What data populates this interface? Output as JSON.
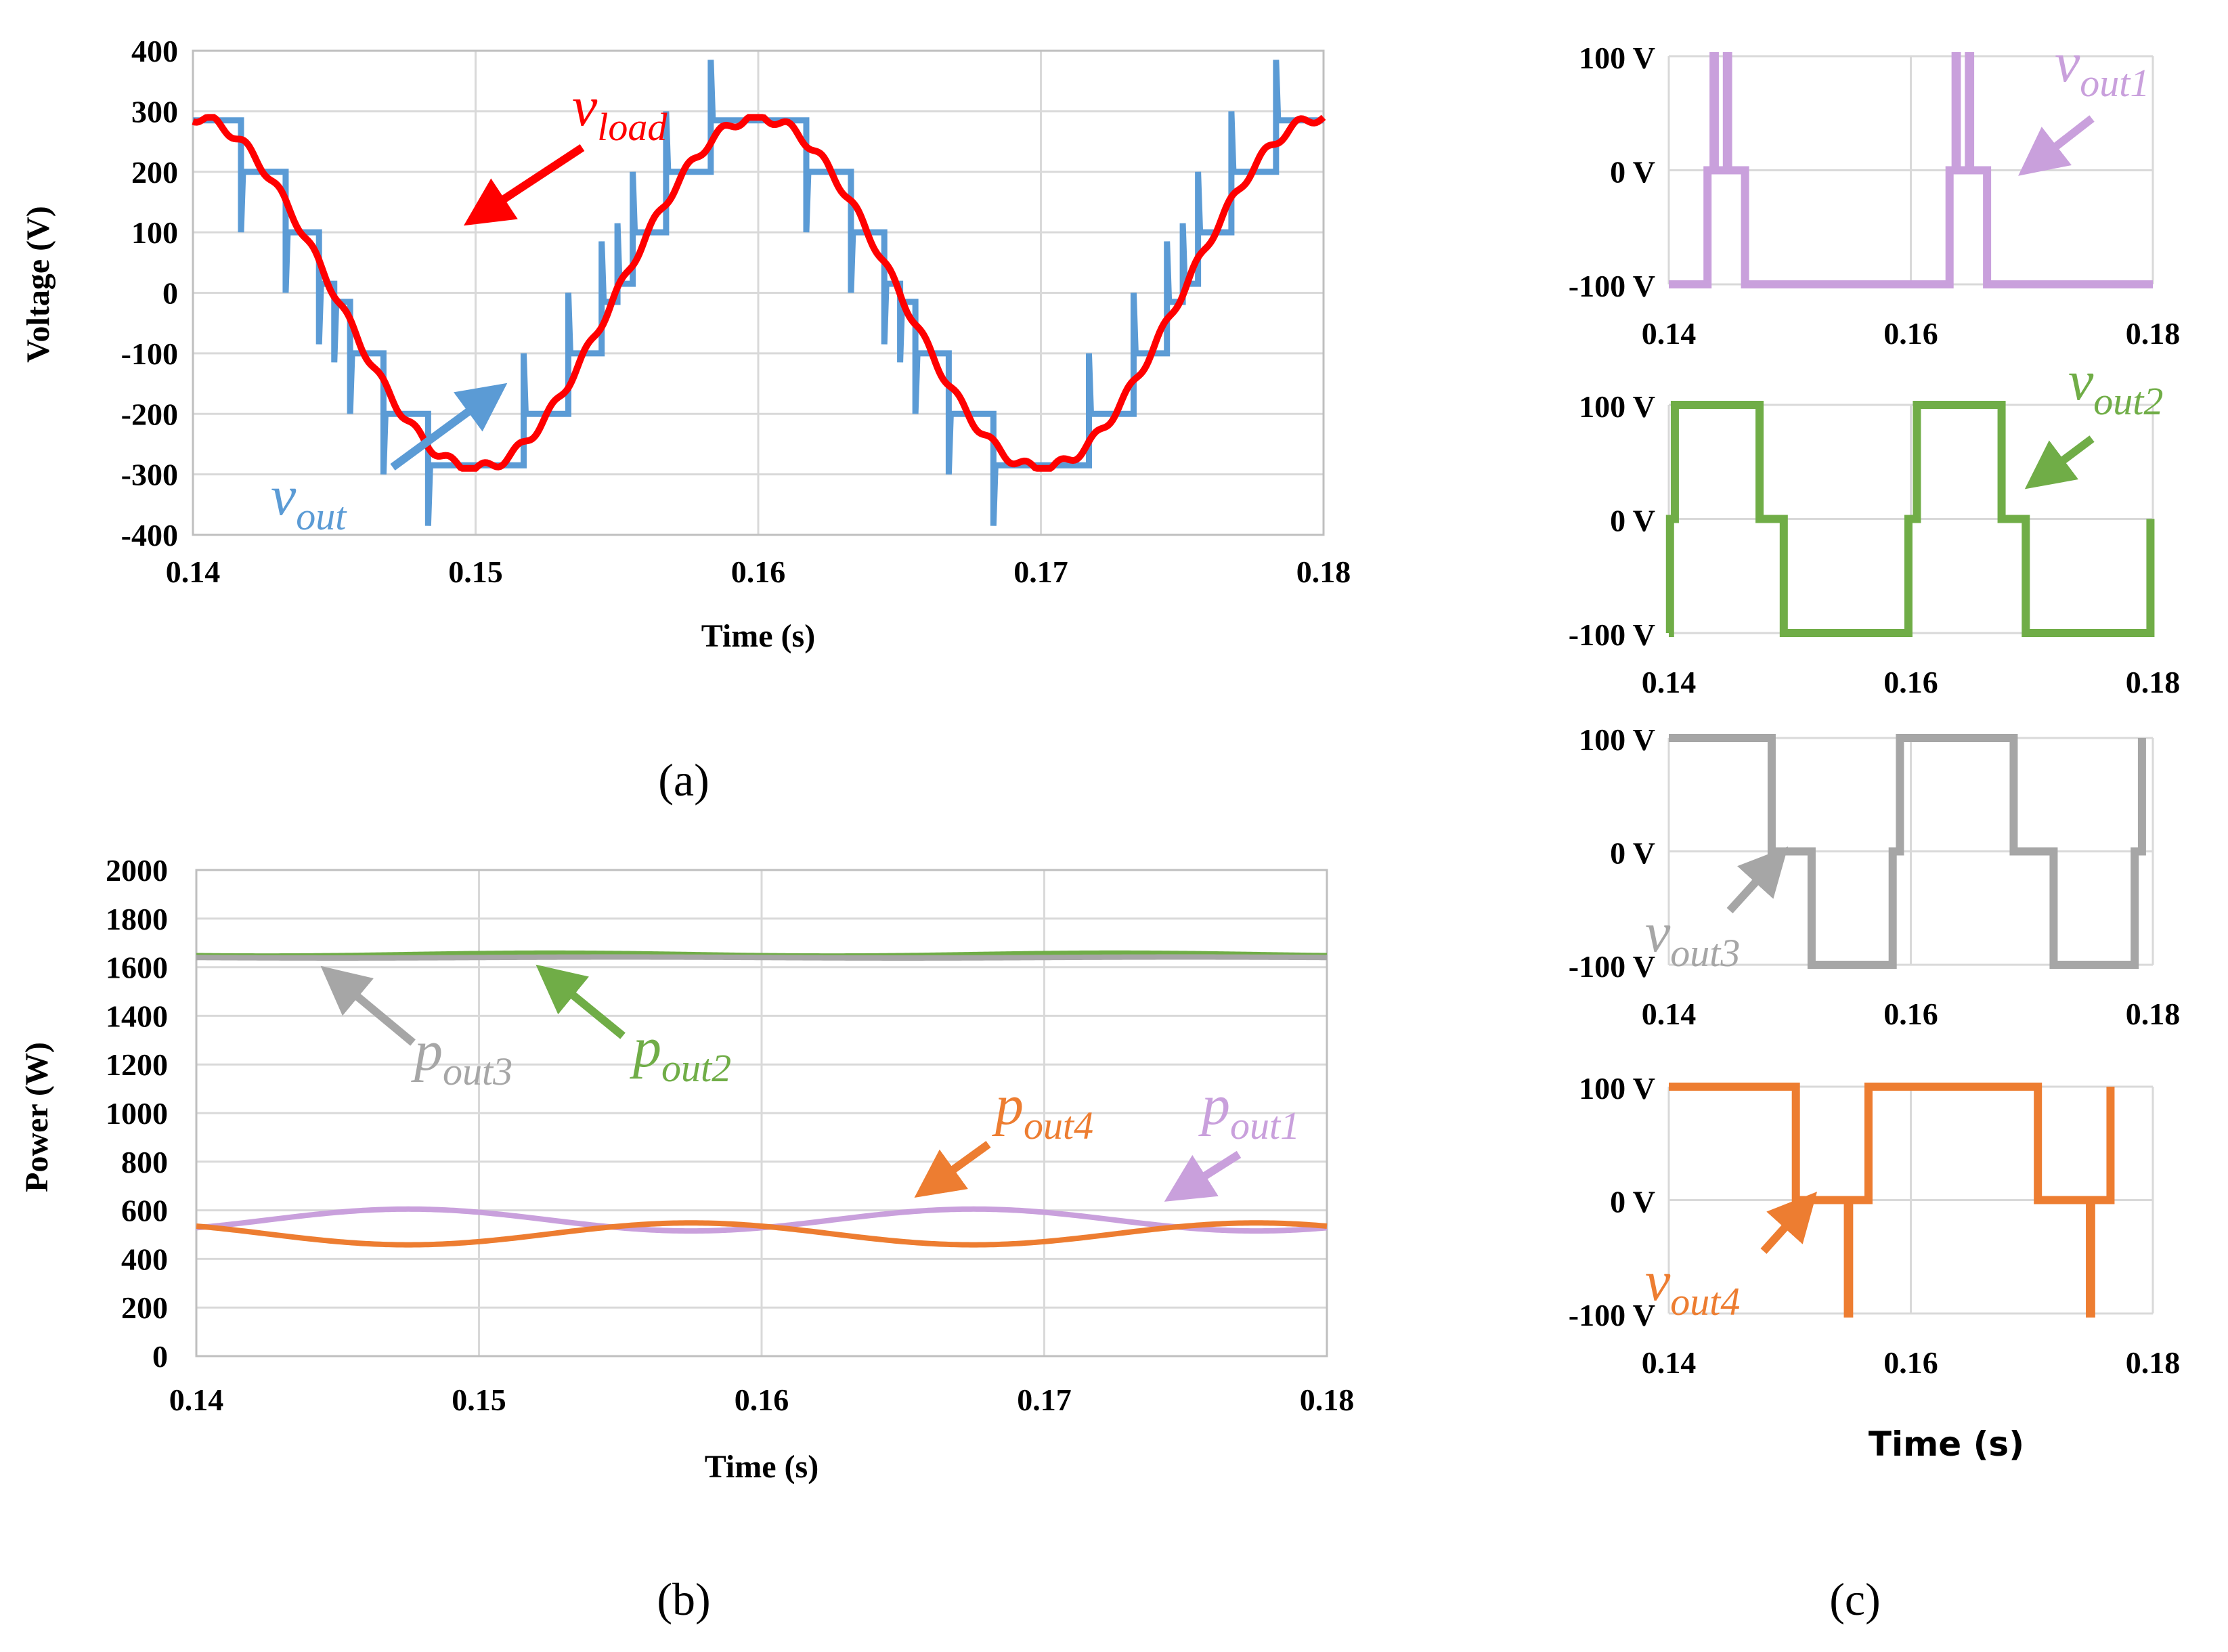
{
  "colors": {
    "vout": "#5b9bd5",
    "vload": "#ff0000",
    "pout1": "#c9a0dc",
    "pout2": "#70ad47",
    "pout3": "#a6a6a6",
    "pout4": "#ed7d31"
  },
  "captions": {
    "a": "(a)",
    "b": "(b)",
    "c": "(c)"
  },
  "chart_data": [
    {
      "id": "a",
      "type": "line",
      "title": "",
      "xlabel": "Time (s)",
      "ylabel": "Voltage (V)",
      "xlim": [
        0.14,
        0.18
      ],
      "ylim": [
        -400,
        400
      ],
      "x_ticks": [
        "0.14",
        "0.15",
        "0.16",
        "0.17",
        "0.18"
      ],
      "y_ticks": [
        "400",
        "300",
        "200",
        "100",
        "0",
        "-100",
        "-200",
        "-300",
        "-400"
      ],
      "annotations": [
        {
          "main": "v",
          "sub": "load",
          "color": "#ff0000"
        },
        {
          "main": "v",
          "sub": "out",
          "color": "#5b9bd5"
        }
      ],
      "series": [
        {
          "name": "vout",
          "description": "stepped multilevel waveform, 20 ms period, levels 0 to ±300 V with spikes to ±390 V",
          "color": "#5b9bd5"
        },
        {
          "name": "vload",
          "description": "filtered sinusoid, amplitude ~290 V, 20 ms period",
          "color": "#ff0000"
        }
      ]
    },
    {
      "id": "b",
      "type": "line",
      "title": "",
      "xlabel": "Time (s)",
      "ylabel": "Power (W)",
      "xlim": [
        0.14,
        0.18
      ],
      "ylim": [
        0,
        2000
      ],
      "x_ticks": [
        "0.14",
        "0.15",
        "0.16",
        "0.17",
        "0.18"
      ],
      "y_ticks": [
        "2000",
        "1800",
        "1600",
        "1400",
        "1200",
        "1000",
        "800",
        "600",
        "400",
        "200",
        "0"
      ],
      "annotations": [
        {
          "main": "p",
          "sub": "out3",
          "color": "#a6a6a6"
        },
        {
          "main": "p",
          "sub": "out2",
          "color": "#70ad47"
        },
        {
          "main": "p",
          "sub": "out4",
          "color": "#ed7d31"
        },
        {
          "main": "p",
          "sub": "out1",
          "color": "#c9a0dc"
        }
      ],
      "series": [
        {
          "name": "pout1",
          "mean": 560,
          "amplitude": 45,
          "period": 0.02,
          "color": "#c9a0dc"
        },
        {
          "name": "pout2",
          "mean": 1652,
          "amplitude": 6,
          "period": 0.02,
          "color": "#70ad47"
        },
        {
          "name": "pout3",
          "mean": 1640,
          "amplitude": 2,
          "period": 0.02,
          "color": "#a6a6a6"
        },
        {
          "name": "pout4",
          "mean": 503,
          "amplitude": 45,
          "period": 0.02,
          "color": "#ed7d31"
        }
      ]
    },
    {
      "id": "c",
      "type": "line",
      "title": "",
      "xlabel": "Time (s)",
      "ylabel": "",
      "xlim": [
        0.14,
        0.18
      ],
      "ylim": [
        -100,
        100
      ],
      "x_ticks": [
        "0.14",
        "0.16",
        "0.18"
      ],
      "y_ticks": [
        "100 V",
        "0 V",
        "-100 V"
      ],
      "series": [
        {
          "name": "vout1",
          "label_main": "v",
          "label_sub": "out1",
          "color": "#c9a0dc",
          "segments": [
            [
              0.14,
              -100
            ],
            [
              0.1432,
              -100
            ],
            [
              0.1432,
              0
            ],
            [
              0.1437,
              0
            ],
            [
              0.1437,
              100
            ],
            [
              0.1438,
              100
            ],
            [
              0.1438,
              0
            ],
            [
              0.1448,
              0
            ],
            [
              0.1448,
              100
            ],
            [
              0.1449,
              100
            ],
            [
              0.1449,
              0
            ],
            [
              0.1463,
              0
            ],
            [
              0.1463,
              -100
            ],
            [
              0.1632,
              -100
            ],
            [
              0.1632,
              0
            ],
            [
              0.1637,
              0
            ],
            [
              0.1637,
              100
            ],
            [
              0.1638,
              100
            ],
            [
              0.1638,
              0
            ],
            [
              0.1648,
              0
            ],
            [
              0.1648,
              100
            ],
            [
              0.1649,
              100
            ],
            [
              0.1649,
              0
            ],
            [
              0.1663,
              0
            ],
            [
              0.1663,
              -100
            ],
            [
              0.18,
              -100
            ]
          ]
        },
        {
          "name": "vout2",
          "label_main": "v",
          "label_sub": "out2",
          "color": "#70ad47",
          "segments": [
            [
              0.14,
              -100
            ],
            [
              0.1401,
              -100
            ],
            [
              0.1401,
              0
            ],
            [
              0.1405,
              0
            ],
            [
              0.1405,
              100
            ],
            [
              0.1475,
              100
            ],
            [
              0.1475,
              0
            ],
            [
              0.1495,
              0
            ],
            [
              0.1495,
              -100
            ],
            [
              0.1598,
              -100
            ],
            [
              0.1598,
              0
            ],
            [
              0.1605,
              0
            ],
            [
              0.1605,
              100
            ],
            [
              0.1675,
              100
            ],
            [
              0.1675,
              0
            ],
            [
              0.1695,
              0
            ],
            [
              0.1695,
              -100
            ],
            [
              0.1798,
              -100
            ],
            [
              0.1798,
              0
            ]
          ]
        },
        {
          "name": "vout3",
          "label_main": "v",
          "label_sub": "out3",
          "color": "#a6a6a6",
          "segments": [
            [
              0.14,
              100
            ],
            [
              0.1485,
              100
            ],
            [
              0.1485,
              0
            ],
            [
              0.1518,
              0
            ],
            [
              0.1518,
              -100
            ],
            [
              0.1585,
              -100
            ],
            [
              0.1585,
              0
            ],
            [
              0.1591,
              0
            ],
            [
              0.1591,
              100
            ],
            [
              0.1685,
              100
            ],
            [
              0.1685,
              0
            ],
            [
              0.1718,
              0
            ],
            [
              0.1718,
              -100
            ],
            [
              0.1785,
              -100
            ],
            [
              0.1785,
              0
            ],
            [
              0.1791,
              0
            ],
            [
              0.1791,
              100
            ]
          ]
        },
        {
          "name": "vout4",
          "label_main": "v",
          "label_sub": "out4",
          "color": "#ed7d31",
          "segments": [
            [
              0.14,
              100
            ],
            [
              0.1445,
              100
            ],
            [
              0.1445,
              100
            ],
            [
              0.1505,
              100
            ],
            [
              0.1505,
              0
            ],
            [
              0.1548,
              0
            ],
            [
              0.1548,
              -100
            ],
            [
              0.1549,
              -100
            ],
            [
              0.1549,
              0
            ],
            [
              0.1565,
              0
            ],
            [
              0.1565,
              100
            ],
            [
              0.1645,
              100
            ],
            [
              0.1645,
              100
            ],
            [
              0.1705,
              100
            ],
            [
              0.1705,
              0
            ],
            [
              0.1748,
              0
            ],
            [
              0.1748,
              -100
            ],
            [
              0.1749,
              -100
            ],
            [
              0.1749,
              0
            ],
            [
              0.1765,
              0
            ],
            [
              0.1765,
              100
            ]
          ]
        }
      ]
    }
  ]
}
